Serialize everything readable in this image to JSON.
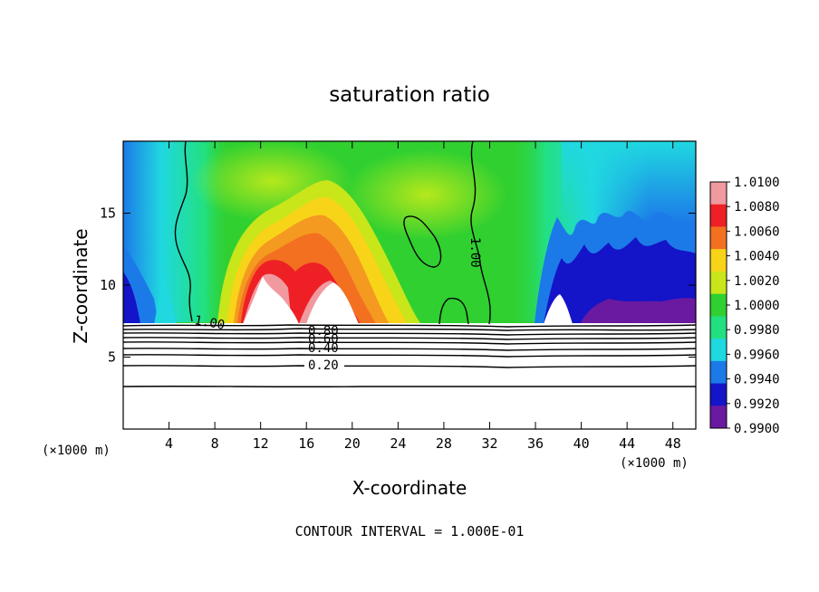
{
  "chart_data": {
    "type": "heatmap",
    "title": "saturation ratio",
    "xlabel": "X-coordinate",
    "ylabel": "Z-coordinate",
    "x_unit": "(×1000 m)",
    "y_unit": "(×1000 m)",
    "xlim": [
      0,
      50
    ],
    "ylim": [
      0,
      20
    ],
    "x_ticks": [
      4,
      8,
      12,
      16,
      20,
      24,
      28,
      32,
      36,
      40,
      44,
      48
    ],
    "y_ticks": [
      5,
      10,
      15
    ],
    "colorbar": {
      "levels": [
        "1.0100",
        "1.0080",
        "1.0060",
        "1.0040",
        "1.0020",
        "1.0000",
        "0.9980",
        "0.9960",
        "0.9940",
        "0.9920",
        "0.9900"
      ],
      "colors": [
        "#f09aa0",
        "#ee2026",
        "#f27020",
        "#f8d418",
        "#c8e61a",
        "#30d030",
        "#22e080",
        "#20d8e0",
        "#1c7ae8",
        "#1414c8",
        "#6a1aa0"
      ]
    },
    "contour_labels": [
      "1.00",
      "1.00",
      "0.80",
      "0.60",
      "0.40",
      "0.20"
    ],
    "contour_interval": "CONTOUR INTERVAL = 1.000E-01"
  }
}
